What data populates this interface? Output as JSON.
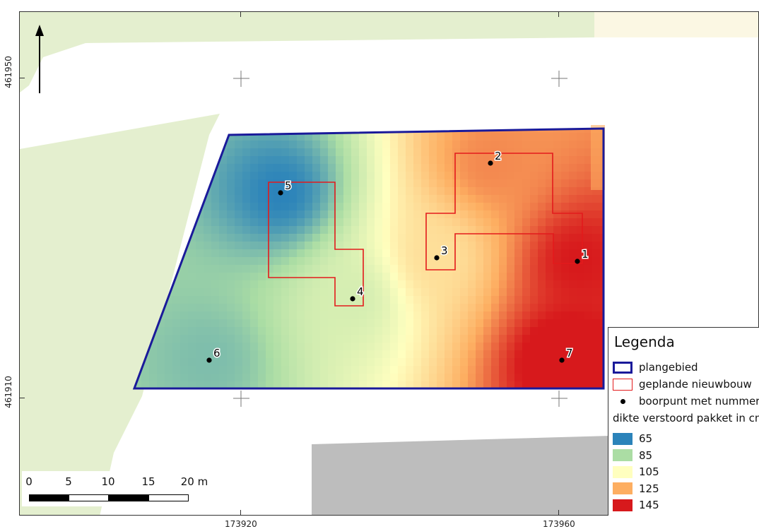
{
  "axes": {
    "x_labels": [
      "173920",
      "173960"
    ],
    "y_labels": [
      "461950",
      "461910"
    ]
  },
  "boreholes": [
    {
      "id": "1",
      "value": 145
    },
    {
      "id": "2",
      "value": 130
    },
    {
      "id": "3",
      "value": 113
    },
    {
      "id": "4",
      "value": 95
    },
    {
      "id": "5",
      "value": 65
    },
    {
      "id": "6",
      "value": 78
    },
    {
      "id": "7",
      "value": 150
    }
  ],
  "legend": {
    "title": "Legenda",
    "plangebied": "plangebied",
    "nieuwbouw": "geplande nieuwbouw",
    "boorpunt": "boorpunt met nummer",
    "raster_title": "dikte verstoord pakket in cm",
    "classes": [
      {
        "label": "65",
        "color": "#2b83ba"
      },
      {
        "label": "85",
        "color": "#abdda4"
      },
      {
        "label": "105",
        "color": "#ffffbf"
      },
      {
        "label": "125",
        "color": "#fdae61"
      },
      {
        "label": "145",
        "color": "#d7191c"
      }
    ]
  },
  "scale_bar": {
    "labels": [
      "0",
      "5",
      "10",
      "15",
      "20 m"
    ]
  },
  "colors": {
    "plangebied": "#1a1a9a",
    "nieuwbouw": "#e31a1c",
    "green_area": "#e4efcf",
    "paved_area": "#bdbdbd",
    "road": "#ffffff"
  },
  "north_arrow": "north-arrow-icon"
}
